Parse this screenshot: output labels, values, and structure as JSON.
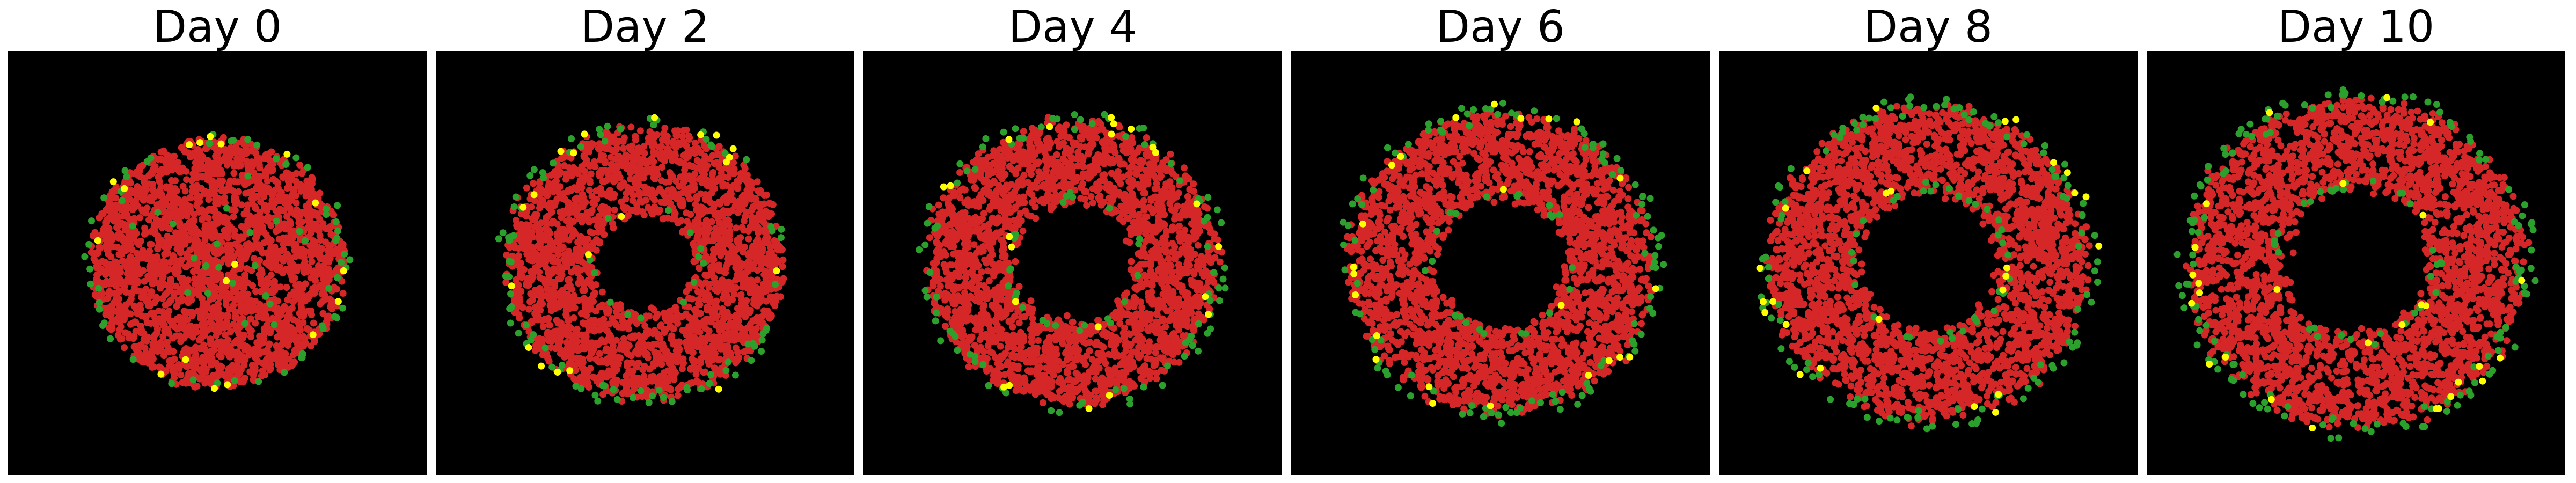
{
  "figure": {
    "panels": [
      {
        "title": "Day 0"
      },
      {
        "title": "Day 2"
      },
      {
        "title": "Day 4"
      },
      {
        "title": "Day 6"
      },
      {
        "title": "Day 8"
      },
      {
        "title": "Day 10"
      }
    ]
  },
  "colors": {
    "background": "#000000",
    "page": "#ffffff",
    "red_cells": "#d62728",
    "green_cells": "#2ca02c",
    "yellow_cells": "#ffff00"
  }
}
